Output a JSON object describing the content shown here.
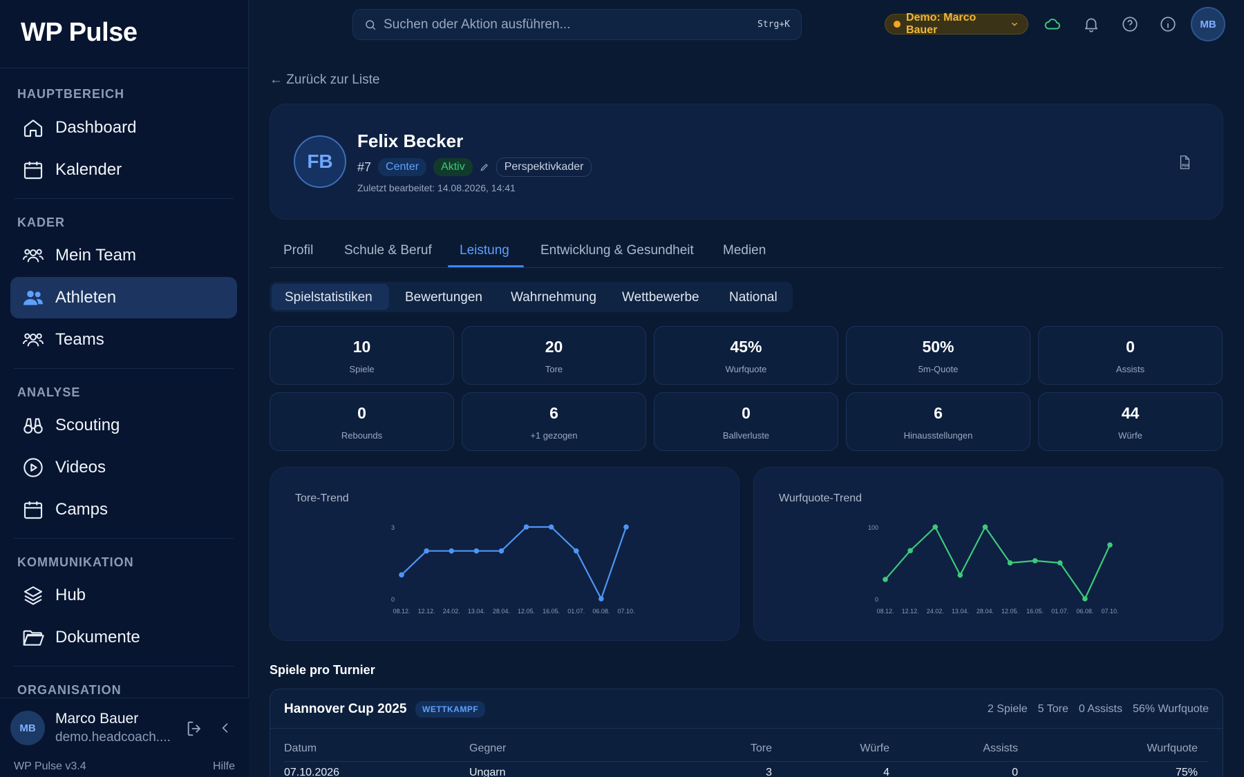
{
  "app": {
    "logo": "WP Pulse",
    "version": "WP Pulse v3.4",
    "help": "Hilfe"
  },
  "sidebar": {
    "sections": [
      {
        "label": "HAUPTBEREICH"
      },
      {
        "label": "KADER"
      },
      {
        "label": "ANALYSE"
      },
      {
        "label": "KOMMUNIKATION"
      },
      {
        "label": "ORGANISATION"
      }
    ],
    "items": [
      {
        "label": "Dashboard",
        "icon": "home-icon"
      },
      {
        "label": "Kalender",
        "icon": "calendar-icon"
      },
      {
        "label": "Mein Team",
        "icon": "users-icon"
      },
      {
        "label": "Athleten",
        "icon": "users-filled-icon",
        "active": true
      },
      {
        "label": "Teams",
        "icon": "users-icon"
      },
      {
        "label": "Scouting",
        "icon": "binoculars-icon"
      },
      {
        "label": "Videos",
        "icon": "play-circle-icon"
      },
      {
        "label": "Camps",
        "icon": "calendar-icon"
      },
      {
        "label": "Hub",
        "icon": "layers-icon"
      },
      {
        "label": "Dokumente",
        "icon": "folder-icon"
      }
    ],
    "user": {
      "initials": "MB",
      "name": "Marco Bauer",
      "email": "demo.headcoach...."
    }
  },
  "topbar": {
    "search_placeholder": "Suchen oder Aktion ausführen...",
    "shortcut": "Strg+K",
    "demo_label": "Demo: Marco Bauer",
    "avatar_initials": "MB",
    "colors": {
      "demo_dot": "#f5a623",
      "cloud": "#3ec97a"
    }
  },
  "main": {
    "back_link": "← Zurück zur Liste",
    "profile": {
      "initials": "FB",
      "name": "Felix Becker",
      "number": "#7",
      "position": "Center",
      "status": "Aktiv",
      "squad": "Perspektivkader",
      "last_edited": "Zuletzt bearbeitet: 14.08.2026, 14:41",
      "pdf_icon": "pdf-file-icon"
    },
    "tabs": [
      "Profil",
      "Schule & Beruf",
      "Leistung",
      "Entwicklung & Gesundheit",
      "Medien"
    ],
    "active_tab": "Leistung",
    "subtabs": [
      "Spielstatistiken",
      "Bewertungen",
      "Wahrnehmung",
      "Wettbewerbe",
      "National"
    ],
    "active_subtab": "Spielstatistiken",
    "stats": [
      {
        "value": "10",
        "label": "Spiele"
      },
      {
        "value": "20",
        "label": "Tore"
      },
      {
        "value": "45%",
        "label": "Wurfquote"
      },
      {
        "value": "50%",
        "label": "5m-Quote"
      },
      {
        "value": "0",
        "label": "Assists"
      },
      {
        "value": "0",
        "label": "Rebounds"
      },
      {
        "value": "6",
        "label": "+1 gezogen"
      },
      {
        "value": "0",
        "label": "Ballverluste"
      },
      {
        "value": "6",
        "label": "Hinausstellungen"
      },
      {
        "value": "44",
        "label": "Würfe"
      }
    ],
    "tournaments_heading": "Spiele pro Turnier",
    "tournament": {
      "name": "Hannover Cup 2025",
      "type": "WETTKAMPF",
      "summary": [
        "2 Spiele",
        "5 Tore",
        "0 Assists",
        "56% Wurfquote"
      ],
      "columns": [
        "Datum",
        "Gegner",
        "Tore",
        "Würfe",
        "Assists",
        "Wurfquote"
      ],
      "rows": [
        [
          "07.10.2026",
          "Ungarn",
          "3",
          "4",
          "0",
          "75%"
        ]
      ]
    }
  },
  "chart_data": [
    {
      "type": "line",
      "title": "Tore-Trend",
      "categories": [
        "08.12.",
        "12.12.",
        "24.02.",
        "13.04.",
        "28.04.",
        "12.05.",
        "16.05.",
        "01.07.",
        "06.08.",
        "07.10."
      ],
      "values": [
        1,
        2,
        2,
        2,
        2,
        3,
        3,
        2,
        0,
        3
      ],
      "yticks": [
        "0",
        "3"
      ],
      "ylim": [
        0,
        3
      ],
      "color": "#4f95f5"
    },
    {
      "type": "line",
      "title": "Wurfquote-Trend",
      "categories": [
        "08.12.",
        "12.12.",
        "24.02.",
        "13.04.",
        "28.04.",
        "12.05.",
        "16.05.",
        "01.07.",
        "06.08.",
        "07.10."
      ],
      "values": [
        27,
        67,
        100,
        33,
        100,
        50,
        53,
        50,
        0,
        75
      ],
      "yticks": [
        "0",
        "100"
      ],
      "ylim": [
        0,
        100
      ],
      "color": "#3ec97a"
    }
  ]
}
